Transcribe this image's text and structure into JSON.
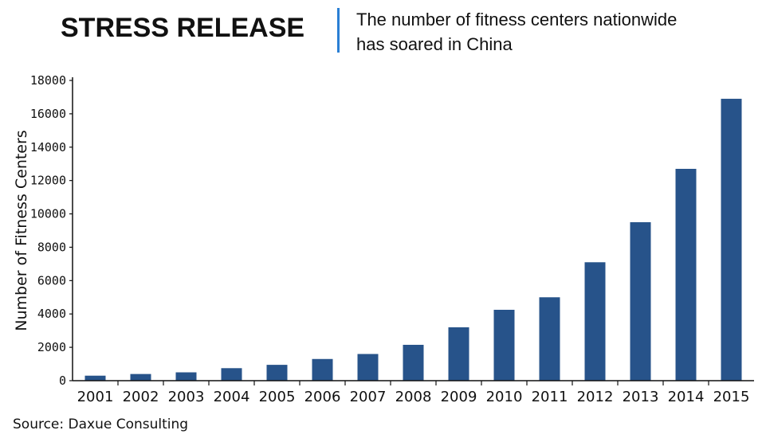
{
  "header": {
    "title": "STRESS RELEASE",
    "subtitle_line1": "The number of fitness centers nationwide",
    "subtitle_line2": "has soared in China"
  },
  "source": "Source: Daxue Consulting",
  "colors": {
    "bar": "#27538a",
    "divider": "#2a7fd4",
    "axis": "#111111"
  },
  "chart_data": {
    "type": "bar",
    "title": "STRESS RELEASE",
    "subtitle": "The number of fitness centers nationwide has soared in China",
    "xlabel": "",
    "ylabel": "Number of Fitness Centers",
    "categories": [
      "2001",
      "2002",
      "2003",
      "2004",
      "2005",
      "2006",
      "2007",
      "2008",
      "2009",
      "2010",
      "2011",
      "2012",
      "2013",
      "2014",
      "2015"
    ],
    "values": [
      300,
      400,
      500,
      750,
      950,
      1300,
      1600,
      2150,
      3200,
      4250,
      5000,
      7100,
      9500,
      12700,
      16900
    ],
    "ylim": [
      0,
      18000
    ],
    "yticks": [
      0,
      2000,
      4000,
      6000,
      8000,
      10000,
      12000,
      14000,
      16000,
      18000
    ],
    "grid": false,
    "legend": "none"
  }
}
